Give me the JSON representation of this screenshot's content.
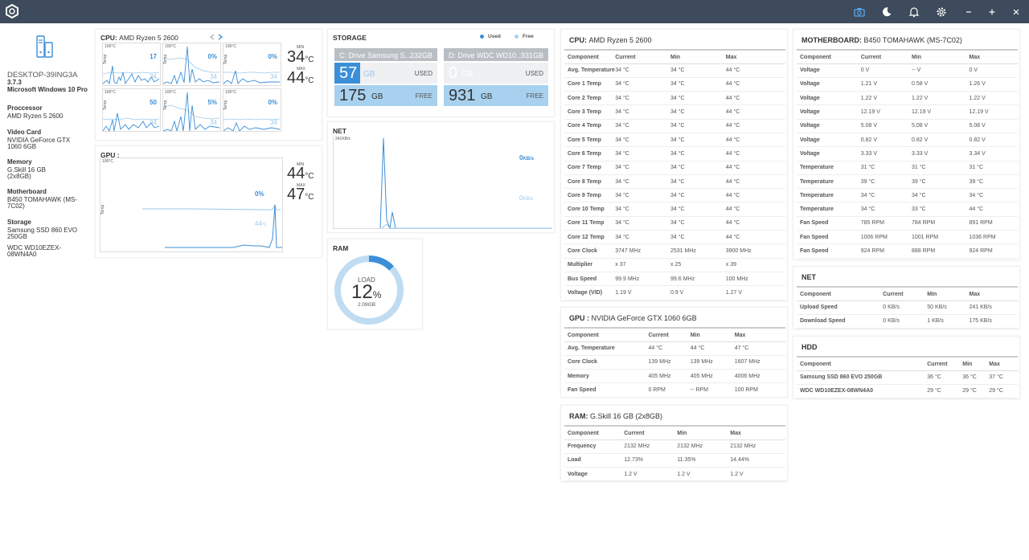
{
  "left": {
    "hostname": "DESKTOP-39ING3A",
    "version": "3.7.3",
    "os": "Microsoft Windows 10 Pro",
    "processor_label": "Proccessor",
    "processor": "AMD Ryzen 5 2600",
    "video_label": "Video Card",
    "video_l1": "NVIDIA GeForce GTX",
    "video_l2": "1060 6GB",
    "memory_label": "Memory",
    "memory_l1": "G.Skill 16 GB",
    "memory_l2": "(2x8GB)",
    "mobo_label": "Motherboard",
    "mobo_l1": "B450 TOMAHAWK (MS-",
    "mobo_l2": "7C02)",
    "storage_label": "Storage",
    "storage_l1": "Samsung SSD 860 EVO",
    "storage_l2": "250GB",
    "storage_l3": "WDC WD10EZEX-",
    "storage_l4": "08WN4A0"
  },
  "cpu_card": {
    "title": "CPU:",
    "name": "AMD Ryzen 5 2600",
    "max_label_top": "100°C",
    "temp_label": "Temp",
    "min_label": "MIN",
    "max_label": "MAX",
    "min_val": "34",
    "max_val": "44",
    "unit": "°C",
    "minis": [
      {
        "cur": "17",
        "avg": "34"
      },
      {
        "cur": "0%",
        "avg": "34"
      },
      {
        "cur": "0%",
        "avg": "34"
      },
      {
        "cur": "50",
        "avg": "34"
      },
      {
        "cur": "5%",
        "avg": "34"
      },
      {
        "cur": "0%",
        "avg": "34"
      }
    ]
  },
  "gpu_card": {
    "title": "GPU :",
    "max_label_top": "100°C",
    "temp_label": "Temp",
    "cur": "0%",
    "avg": "44",
    "avg_unit": "°C",
    "min_label": "MIN",
    "max_label": "MAX",
    "min_val": "44",
    "max_val": "47",
    "unit": "°C"
  },
  "storage_card": {
    "title": "STORAGE",
    "legend_used": "Used",
    "legend_free": "Free",
    "colors": {
      "used": "#3a8fd8",
      "free": "#a8d1ef"
    },
    "drives": [
      {
        "head": "C: Drive Samsung S...",
        "size": "232GB",
        "used": "57",
        "free": "175",
        "unit": "GB",
        "used_tag": "USED",
        "free_tag": "FREE",
        "used_fraction": 0.25
      },
      {
        "head": "D: Drive WDC WD10...",
        "size": "931GB",
        "used": "0",
        "free": "931",
        "unit": "GB",
        "used_tag": "USED",
        "free_tag": "FREE",
        "used_fraction": 0.0
      }
    ]
  },
  "net_card": {
    "title": "NET",
    "scale": "241KB/s",
    "up": "0",
    "down": "0",
    "unit": "KB/s"
  },
  "ram_card": {
    "title": "RAM",
    "load_label": "LOAD",
    "load": "12",
    "pct": "%",
    "used": "2.09GB",
    "load_fraction": 0.1273
  },
  "cpu_table": {
    "title": "CPU:",
    "name": "AMD Ryzen 5 2600",
    "headers": [
      "Component",
      "Current",
      "Min",
      "Max"
    ],
    "rows": [
      [
        "Avg. Temperature",
        "34 °C",
        "34 °C",
        "44 °C"
      ],
      [
        "Core 1 Temp",
        "34 °C",
        "34 °C",
        "44 °C"
      ],
      [
        "Core 2 Temp",
        "34 °C",
        "34 °C",
        "44 °C"
      ],
      [
        "Core 3 Temp",
        "34 °C",
        "34 °C",
        "44 °C"
      ],
      [
        "Core 4 Temp",
        "34 °C",
        "34 °C",
        "44 °C"
      ],
      [
        "Core 5 Temp",
        "34 °C",
        "34 °C",
        "44 °C"
      ],
      [
        "Core 6 Temp",
        "34 °C",
        "34 °C",
        "44 °C"
      ],
      [
        "Core 7 Temp",
        "34 °C",
        "34 °C",
        "44 °C"
      ],
      [
        "Core 8 Temp",
        "34 °C",
        "34 °C",
        "44 °C"
      ],
      [
        "Core 9 Temp",
        "34 °C",
        "34 °C",
        "44 °C"
      ],
      [
        "Core 10 Temp",
        "34 °C",
        "34 °C",
        "44 °C"
      ],
      [
        "Core 11 Temp",
        "34 °C",
        "34 °C",
        "44 °C"
      ],
      [
        "Core 12 Temp",
        "34 °C",
        "34 °C",
        "44 °C"
      ],
      [
        "Core Clock",
        "3747 MHz",
        "2531 MHz",
        "3900 MHz"
      ],
      [
        "Multiplier",
        "x 37",
        "x 25",
        "x 39"
      ],
      [
        "Bus Speed",
        "99.9 MHz",
        "99.6 MHz",
        "100 MHz"
      ],
      [
        "Voltage (VID)",
        "1.19 V",
        "0.9 V",
        "1.27 V"
      ]
    ]
  },
  "gpu_table": {
    "title": "GPU :",
    "name": "NVIDIA GeForce GTX 1060 6GB",
    "headers": [
      "Component",
      "Current",
      "Min",
      "Max"
    ],
    "rows": [
      [
        "Avg. Temperature",
        "44 °C",
        "44 °C",
        "47 °C"
      ],
      [
        "Core Clock",
        "139 MHz",
        "139 MHz",
        "1607 MHz"
      ],
      [
        "Memory",
        "405 MHz",
        "405 MHz",
        "4006 MHz"
      ],
      [
        "Fan Speed",
        "0 RPM",
        "-- RPM",
        "100 RPM"
      ]
    ]
  },
  "ram_table": {
    "title": "RAM:",
    "name": "G.Skill 16 GB (2x8GB)",
    "headers": [
      "Component",
      "Current",
      "Min",
      "Max"
    ],
    "rows": [
      [
        "Frequency",
        "2132 MHz",
        "2132 MHz",
        "2132 MHz"
      ],
      [
        "Load",
        "12.73%",
        "11.35%",
        "14.44%"
      ],
      [
        "Voltage",
        "1.2 V",
        "1.2 V",
        "1.2 V"
      ]
    ]
  },
  "mobo_table": {
    "title": "MOTHERBOARD:",
    "name": "B450 TOMAHAWK (MS-7C02)",
    "headers": [
      "Component",
      "Current",
      "Min",
      "Max"
    ],
    "rows": [
      [
        "Voltage",
        "0 V",
        "-- V",
        "0 V"
      ],
      [
        "Voltage",
        "1.21 V",
        "0.58 V",
        "1.26 V"
      ],
      [
        "Voltage",
        "1.22 V",
        "1.22 V",
        "1.22 V"
      ],
      [
        "Voltage",
        "12.19 V",
        "12.19 V",
        "12.19 V"
      ],
      [
        "Voltage",
        "5.08 V",
        "5.08 V",
        "5.08 V"
      ],
      [
        "Voltage",
        "0.82 V",
        "0.82 V",
        "0.82 V"
      ],
      [
        "Voltage",
        "3.33 V",
        "3.33 V",
        "3.34 V"
      ],
      [
        "Temperature",
        "31 °C",
        "31 °C",
        "31 °C"
      ],
      [
        "Temperature",
        "39 °C",
        "39 °C",
        "39 °C"
      ],
      [
        "Temperature",
        "34 °C",
        "34 °C",
        "34 °C"
      ],
      [
        "Temperature",
        "34 °C",
        "33 °C",
        "44 °C"
      ],
      [
        "Fan Speed",
        "785 RPM",
        "784 RPM",
        "891 RPM"
      ],
      [
        "Fan Speed",
        "1006 RPM",
        "1001 RPM",
        "1036 RPM"
      ],
      [
        "Fan Speed",
        "924 RPM",
        "888 RPM",
        "924 RPM"
      ]
    ]
  },
  "net_table": {
    "title": "NET",
    "headers": [
      "Component",
      "Current",
      "Min",
      "Max"
    ],
    "rows": [
      [
        "Upload Speed",
        "0 KB/s",
        "50 KB/s",
        "241 KB/s"
      ],
      [
        "Download Speed",
        "0 KB/s",
        "1 KB/s",
        "175 KB/s"
      ]
    ]
  },
  "hdd_table": {
    "title": "HDD",
    "headers": [
      "Component",
      "Current",
      "Min",
      "Max"
    ],
    "rows": [
      [
        "Samsung SSD 860 EVO 250GB",
        "36 °C",
        "36 °C",
        "37 °C"
      ],
      [
        "WDC WD10EZEX-08WN4A0",
        "29 °C",
        "29 °C",
        "29 °C"
      ]
    ]
  },
  "titlebar_icons": [
    "camera-icon",
    "moon-icon",
    "bell-icon",
    "gear-icon",
    "minimize-icon",
    "maximize-icon",
    "close-icon"
  ]
}
